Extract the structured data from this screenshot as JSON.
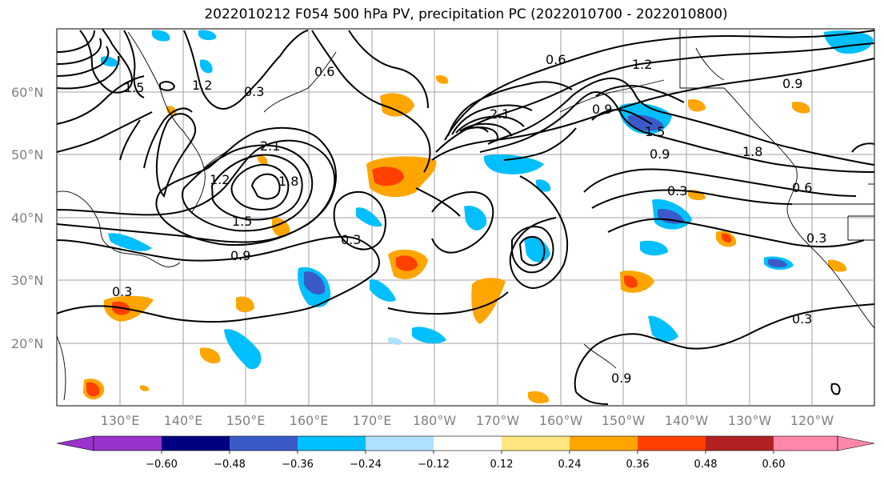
{
  "title": "2022010212 F054 500 hPa PV, precipitation PC (2022010700 - 2022010800)",
  "lat_labels": [
    "60°N",
    "50°N",
    "40°N",
    "30°N",
    "20°N"
  ],
  "lon_labels": [
    "130°E",
    "140°E",
    "150°E",
    "160°E",
    "170°E",
    "180°W",
    "170°W",
    "160°W",
    "150°W",
    "140°W",
    "130°W",
    "120°W"
  ],
  "contour_labels": [
    "1.2",
    "0.6",
    "0.9",
    "1.5",
    "0.3",
    "2.1",
    "1.8",
    "1.2",
    "0.3",
    "0.9",
    "1.5",
    "1.8",
    "0.3",
    "0.6",
    "0.3",
    "0.9",
    "0.3",
    "0.3",
    "0.9",
    "0.6",
    "1.2",
    "2.1",
    "1.5",
    "0.9"
  ],
  "colorbar": {
    "ticks": [
      "−0.60",
      "−0.48",
      "−0.36",
      "−0.24",
      "−0.12",
      "0.12",
      "0.24",
      "0.36",
      "0.48",
      "0.60"
    ],
    "colors": [
      "#9933cc",
      "#000080",
      "#3a5bc7",
      "#00bfff",
      "#b0e0ff",
      "#ffffff",
      "#ffe680",
      "#ffa500",
      "#ff4000",
      "#b22222",
      "#ff88aa"
    ]
  },
  "map_colors": {
    "ocean": "#ffffff",
    "contour": "#000000",
    "grid": "#a0a0a0"
  }
}
